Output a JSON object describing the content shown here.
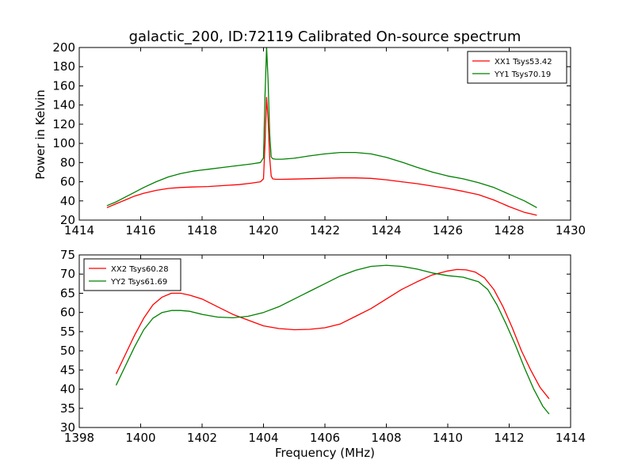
{
  "chart_data": [
    {
      "type": "line",
      "title": "galactic_200, ID:72119 Calibrated On-source spectrum",
      "xlabel": "",
      "ylabel": "Power in Kelvin",
      "xlim": [
        1414,
        1430
      ],
      "ylim": [
        20,
        200
      ],
      "xticks": [
        1414,
        1416,
        1418,
        1420,
        1422,
        1424,
        1426,
        1428,
        1430
      ],
      "yticks": [
        20,
        40,
        60,
        80,
        100,
        120,
        140,
        160,
        180,
        200
      ],
      "legend_position": "upper-right",
      "series": [
        {
          "name": "XX1 Tsys53.42",
          "color": "#ff0000",
          "x": [
            1414.9,
            1415.2,
            1415.5,
            1415.8,
            1416.1,
            1416.5,
            1416.9,
            1417.3,
            1417.7,
            1418.2,
            1418.7,
            1419.2,
            1419.6,
            1419.9,
            1420.0,
            1420.05,
            1420.1,
            1420.15,
            1420.2,
            1420.25,
            1420.3,
            1420.4,
            1420.6,
            1421.0,
            1421.5,
            1422.0,
            1422.5,
            1423.0,
            1423.5,
            1424.0,
            1424.5,
            1425.0,
            1425.5,
            1426.0,
            1426.5,
            1427.0,
            1427.5,
            1428.0,
            1428.5,
            1428.9
          ],
          "y": [
            33,
            37,
            41,
            45,
            48,
            51,
            53,
            54,
            54.5,
            55,
            56,
            57,
            58.5,
            60,
            63,
            100,
            148,
            125,
            85,
            66,
            63,
            62.5,
            62.5,
            62.8,
            63.2,
            63.6,
            64,
            64,
            63.5,
            62,
            60,
            58,
            55.5,
            53,
            50,
            46.5,
            41,
            34,
            28,
            25
          ]
        },
        {
          "name": "YY1 Tsys70.19",
          "color": "#008000",
          "x": [
            1414.9,
            1415.2,
            1415.5,
            1415.8,
            1416.1,
            1416.5,
            1416.9,
            1417.3,
            1417.7,
            1418.2,
            1418.7,
            1419.2,
            1419.6,
            1419.9,
            1420.0,
            1420.05,
            1420.1,
            1420.15,
            1420.2,
            1420.25,
            1420.3,
            1420.4,
            1420.6,
            1421.0,
            1421.5,
            1422.0,
            1422.5,
            1423.0,
            1423.5,
            1424.0,
            1424.5,
            1425.0,
            1425.5,
            1426.0,
            1426.5,
            1427.0,
            1427.5,
            1428.0,
            1428.5,
            1428.9
          ],
          "y": [
            35,
            39,
            44,
            49,
            54,
            60,
            65,
            68.5,
            71,
            73,
            75,
            77,
            78.5,
            80,
            85,
            150,
            200,
            165,
            110,
            86,
            84,
            83.5,
            83.5,
            84.5,
            87,
            89,
            90.5,
            90.5,
            89,
            85.5,
            80.5,
            75,
            70,
            66,
            63,
            59,
            54,
            47,
            40,
            33
          ]
        }
      ]
    },
    {
      "type": "line",
      "title": "",
      "xlabel": "Frequency (MHz)",
      "ylabel": "",
      "xlim": [
        1398,
        1414
      ],
      "ylim": [
        30,
        75
      ],
      "xticks": [
        1398,
        1400,
        1402,
        1404,
        1406,
        1408,
        1410,
        1412,
        1414
      ],
      "yticks": [
        30,
        35,
        40,
        45,
        50,
        55,
        60,
        65,
        70,
        75
      ],
      "legend_position": "upper-left",
      "series": [
        {
          "name": "XX2 Tsys60.28",
          "color": "#ff0000",
          "x": [
            1399.2,
            1399.5,
            1399.8,
            1400.1,
            1400.4,
            1400.7,
            1401.0,
            1401.3,
            1401.6,
            1402.0,
            1402.5,
            1403.0,
            1403.5,
            1404.0,
            1404.5,
            1405.0,
            1405.5,
            1406.0,
            1406.5,
            1407.0,
            1407.5,
            1408.0,
            1408.5,
            1409.0,
            1409.5,
            1410.0,
            1410.3,
            1410.6,
            1410.9,
            1411.2,
            1411.5,
            1411.8,
            1412.1,
            1412.4,
            1412.7,
            1413.0,
            1413.3
          ],
          "y": [
            44,
            49,
            54,
            58.5,
            62,
            64,
            65,
            65,
            64.5,
            63.5,
            61.5,
            59.5,
            58,
            56.5,
            55.8,
            55.5,
            55.6,
            56,
            57,
            59,
            61,
            63.5,
            66,
            68,
            69.8,
            70.8,
            71.2,
            71.1,
            70.5,
            69,
            66,
            61.5,
            56,
            50,
            45,
            40.5,
            37.5
          ]
        },
        {
          "name": "YY2 Tsys61.69",
          "color": "#008000",
          "x": [
            1399.2,
            1399.5,
            1399.8,
            1400.1,
            1400.4,
            1400.7,
            1401.0,
            1401.3,
            1401.6,
            1402.0,
            1402.5,
            1403.0,
            1403.5,
            1404.0,
            1404.5,
            1405.0,
            1405.5,
            1406.0,
            1406.5,
            1407.0,
            1407.5,
            1408.0,
            1408.5,
            1409.0,
            1409.5,
            1410.0,
            1410.5,
            1411.0,
            1411.3,
            1411.6,
            1411.9,
            1412.2,
            1412.5,
            1412.8,
            1413.1,
            1413.3
          ],
          "y": [
            41,
            46,
            51,
            55.5,
            58.5,
            60,
            60.5,
            60.5,
            60.3,
            59.5,
            58.8,
            58.6,
            59,
            60,
            61.5,
            63.5,
            65.5,
            67.5,
            69.5,
            71,
            72,
            72.3,
            72,
            71.3,
            70.3,
            69.6,
            69.2,
            68,
            66,
            62,
            57,
            51.5,
            45.5,
            40,
            35.5,
            33.5
          ]
        }
      ]
    }
  ]
}
